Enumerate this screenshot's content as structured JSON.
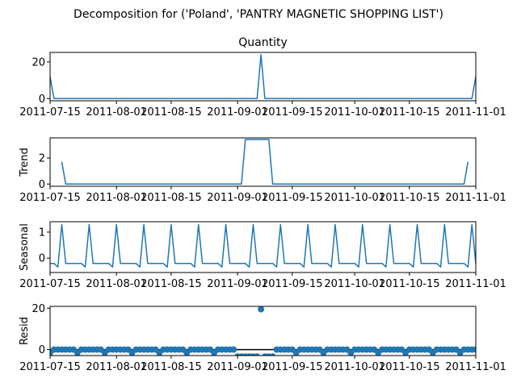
{
  "figure": {
    "suptitle": "Decomposition for ('Poland', 'PANTRY MAGNETIC  SHOPPING LIST')",
    "line_color": "#1f77b4"
  },
  "chart_data": [
    {
      "type": "line",
      "title": "Quantity",
      "ylabel": "",
      "x_range": [
        "2011-07-15",
        "2011-11-01"
      ],
      "ylim": [
        -1.2,
        25.2
      ],
      "yticks": [
        0,
        20
      ],
      "xticks": [
        "2011-07-15",
        "2011-08-01",
        "2011-08-15",
        "2011-09-01",
        "2011-09-15",
        "2011-10-01",
        "2011-10-15",
        "2011-11-01"
      ],
      "series": [
        {
          "points": [
            [
              "2011-07-15",
              12
            ],
            [
              "2011-07-16",
              0
            ],
            [
              "2011-09-06",
              0
            ],
            [
              "2011-09-07",
              24
            ],
            [
              "2011-09-08",
              0
            ],
            [
              "2011-10-31",
              0
            ],
            [
              "2011-11-01",
              12
            ]
          ]
        }
      ]
    },
    {
      "type": "line",
      "title": "",
      "ylabel": "Trend",
      "x_range": [
        "2011-07-15",
        "2011-11-01"
      ],
      "ylim": [
        -0.17,
        3.55
      ],
      "yticks": [
        0,
        2
      ],
      "xticks": [
        "2011-07-15",
        "2011-08-01",
        "2011-08-15",
        "2011-09-01",
        "2011-09-15",
        "2011-10-01",
        "2011-10-15",
        "2011-11-01"
      ],
      "series": [
        {
          "points": [
            [
              "2011-07-18",
              1.71
            ],
            [
              "2011-07-19",
              0
            ],
            [
              "2011-09-02",
              0
            ],
            [
              "2011-09-03",
              3.43
            ],
            [
              "2011-09-09",
              3.43
            ],
            [
              "2011-09-10",
              0
            ],
            [
              "2011-10-29",
              0
            ],
            [
              "2011-10-30",
              1.71
            ]
          ]
        }
      ]
    },
    {
      "type": "line",
      "title": "",
      "ylabel": "Seasonal",
      "x_range": [
        "2011-07-15",
        "2011-11-01"
      ],
      "ylim": [
        -0.55,
        1.4
      ],
      "yticks": [
        0,
        1
      ],
      "xticks": [
        "2011-07-15",
        "2011-08-01",
        "2011-08-15",
        "2011-09-01",
        "2011-09-15",
        "2011-10-01",
        "2011-10-15",
        "2011-11-01"
      ],
      "series": [
        {
          "period_days": 7,
          "start": "2011-07-15",
          "pattern": [
            -0.2,
            -0.2,
            -0.34,
            1.29,
            -0.2,
            -0.2,
            -0.2
          ]
        }
      ]
    },
    {
      "type": "scatter",
      "title": "",
      "ylabel": "Resid",
      "x_range": [
        "2011-07-15",
        "2011-11-01"
      ],
      "ylim": [
        -2.9,
        20.9
      ],
      "yticks": [
        0,
        20
      ],
      "zero_line": true,
      "xticks": [
        "2011-07-15",
        "2011-08-01",
        "2011-08-15",
        "2011-09-01",
        "2011-09-15",
        "2011-10-01",
        "2011-10-15",
        "2011-11-01"
      ],
      "series": [
        {
          "values": [
            -1.5,
            0,
            0,
            0,
            0,
            0,
            0,
            -1.5,
            0,
            0,
            0,
            0,
            0,
            0,
            -1.5,
            0,
            0,
            0,
            0,
            0,
            0,
            -1.5,
            0,
            0,
            0,
            0,
            0,
            0,
            -1.5,
            0,
            0,
            0,
            0,
            0,
            0,
            -1.5,
            0,
            0,
            0,
            0,
            0,
            0,
            -1.5,
            0,
            0,
            0,
            0,
            0,
            0,
            -1.5,
            0,
            0,
            0,
            0,
            0,
            0,
            -1.5,
            0,
            0,
            0,
            0,
            0,
            0,
            -1.5,
            0,
            0,
            0,
            0,
            0,
            0,
            -1.5,
            0,
            0,
            0,
            0,
            0,
            0,
            -1.5,
            0,
            0,
            0,
            0,
            0,
            0,
            -1.5,
            0,
            0,
            0,
            0,
            0,
            0,
            -1.5,
            0,
            0,
            0,
            0,
            0,
            0,
            -1.5,
            0,
            0,
            0,
            0,
            0,
            0,
            -1.5,
            0,
            0,
            0,
            0,
            0,
            0,
            -1.5,
            0,
            0,
            0,
            0,
            0,
            0,
            -1.5
          ],
          "overrides": [
            [
              "2011-09-01",
              -3.4
            ],
            [
              "2011-09-02",
              -3.4
            ],
            [
              "2011-09-03",
              -3.4
            ],
            [
              "2011-09-04",
              -3.4
            ],
            [
              "2011-09-05",
              -3.4
            ],
            [
              "2011-09-06",
              -3.4
            ],
            [
              "2011-09-07",
              19.5
            ],
            [
              "2011-09-08",
              -3.4
            ],
            [
              "2011-09-09",
              -3.4
            ],
            [
              "2011-09-10",
              -3.4
            ]
          ]
        }
      ]
    }
  ]
}
